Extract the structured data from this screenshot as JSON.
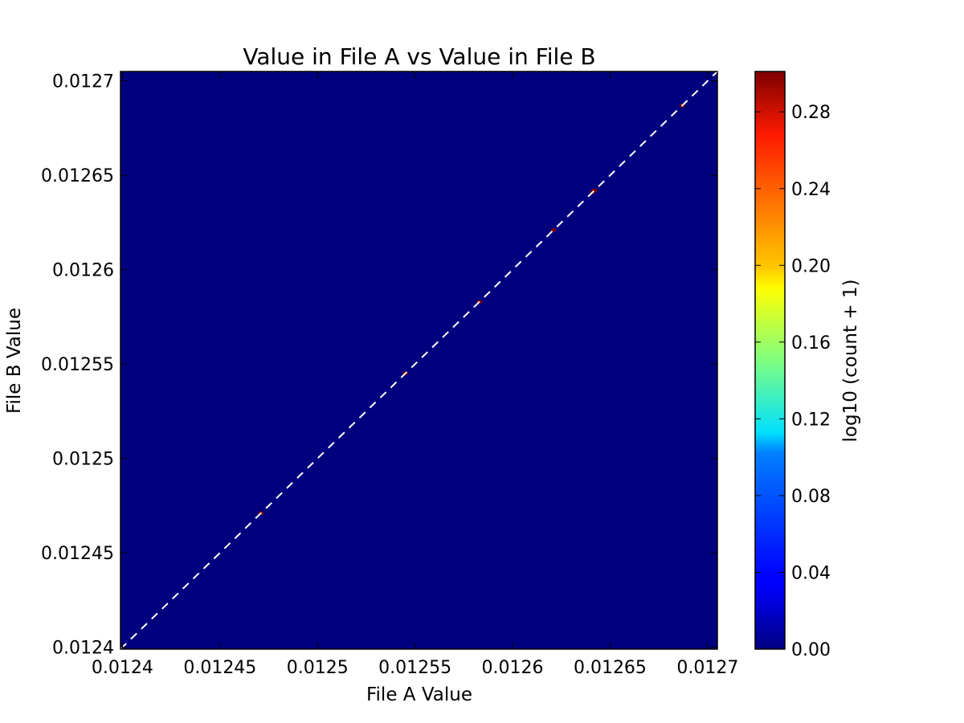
{
  "chart_data": {
    "type": "heatmap",
    "title": "Value in File A vs Value in File B",
    "xlabel": "File A Value",
    "ylabel": "File B Value",
    "xlim": [
      0.012399,
      0.012705
    ],
    "ylim": [
      0.012399,
      0.012705
    ],
    "x_ticks": [
      0.0124,
      0.01245,
      0.0125,
      0.01255,
      0.0126,
      0.01265,
      0.0127
    ],
    "x_tick_labels": [
      "0.0124",
      "0.01245",
      "0.0125",
      "0.01255",
      "0.0126",
      "0.01265",
      "0.0127"
    ],
    "y_ticks": [
      0.0124,
      0.01245,
      0.0125,
      0.01255,
      0.0126,
      0.01265,
      0.0127
    ],
    "y_tick_labels": [
      "0.0124",
      "0.01245",
      "0.0125",
      "0.01255",
      "0.0126",
      "0.01265",
      "0.0127"
    ],
    "background_value": 0.0,
    "cells": [
      {
        "x": 0.012471,
        "y": 0.012471,
        "value": 0.3
      },
      {
        "x": 0.012545,
        "y": 0.012545,
        "value": 0.3
      },
      {
        "x": 0.012583,
        "y": 0.012583,
        "value": 0.3
      },
      {
        "x": 0.012621,
        "y": 0.012621,
        "value": 0.3
      },
      {
        "x": 0.012641,
        "y": 0.012641,
        "value": 0.3
      },
      {
        "x": 0.012642,
        "y": 0.012642,
        "value": 0.3
      },
      {
        "x": 0.012687,
        "y": 0.012687,
        "value": 0.3
      }
    ],
    "reference_line": {
      "style": "dashed",
      "color": "#ffffff",
      "from": [
        0.012399,
        0.012399
      ],
      "to": [
        0.012705,
        0.012705
      ]
    },
    "colorbar": {
      "label": "log10 (count + 1)",
      "range": [
        0.0,
        0.30103
      ],
      "ticks": [
        0.0,
        0.04,
        0.08,
        0.12,
        0.16,
        0.2,
        0.24,
        0.28
      ],
      "tick_labels": [
        "0.00",
        "0.04",
        "0.08",
        "0.12",
        "0.16",
        "0.20",
        "0.24",
        "0.28"
      ],
      "colormap": "jet"
    },
    "grid": false,
    "legend": "none"
  }
}
